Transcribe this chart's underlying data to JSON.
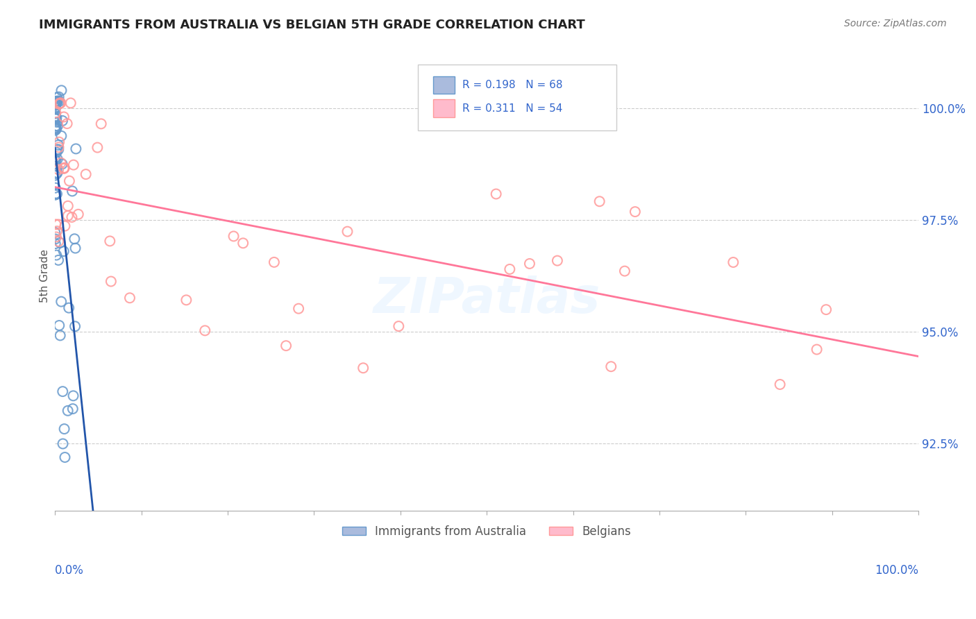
{
  "title": "IMMIGRANTS FROM AUSTRALIA VS BELGIAN 5TH GRADE CORRELATION CHART",
  "source": "Source: ZipAtlas.com",
  "ylabel": "5th Grade",
  "ylabel_ticks": [
    "92.5%",
    "95.0%",
    "97.5%",
    "100.0%"
  ],
  "ylabel_tick_vals": [
    92.5,
    95.0,
    97.5,
    100.0
  ],
  "xlim": [
    0.0,
    100.0
  ],
  "ylim": [
    91.0,
    101.5
  ],
  "R_blue": 0.198,
  "N_blue": 68,
  "R_pink": 0.311,
  "N_pink": 54,
  "blue_color": "#6699CC",
  "pink_color": "#FF9999",
  "blue_line_color": "#2255AA",
  "pink_line_color": "#FF7799",
  "watermark": "ZIPatlas"
}
